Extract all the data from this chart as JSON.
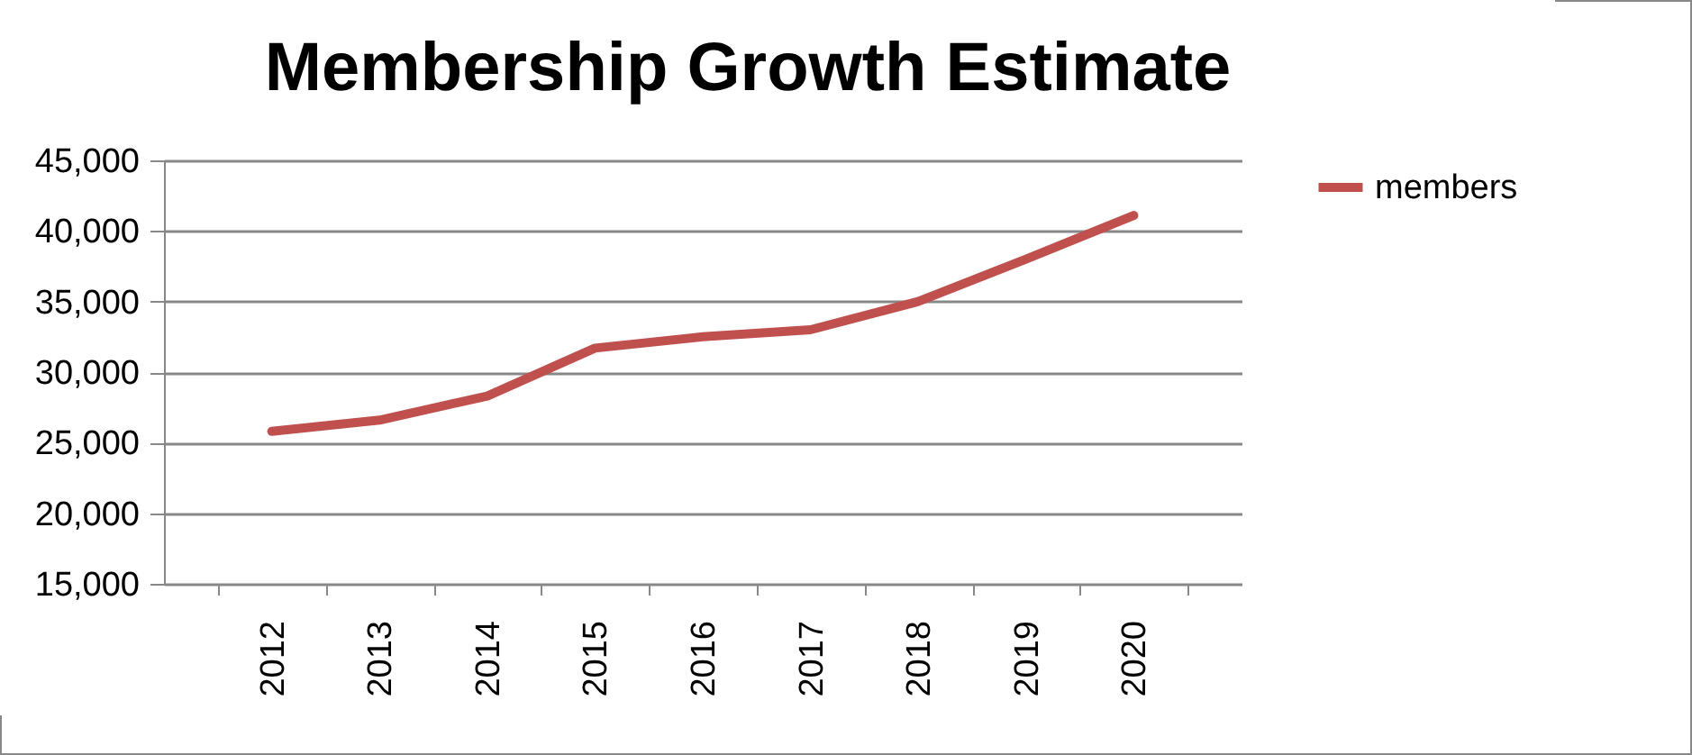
{
  "chart_data": {
    "type": "line",
    "title": "Membership Growth Estimate",
    "categories": [
      "2012",
      "2013",
      "2014",
      "2015",
      "2016",
      "2017",
      "2018",
      "2019",
      "2020"
    ],
    "series": [
      {
        "name": "members",
        "color": "#c0504d",
        "values": [
          25800,
          26600,
          28300,
          31700,
          32500,
          33000,
          35000,
          38000,
          41100
        ]
      }
    ],
    "ylim": [
      15000,
      45000
    ],
    "yticks": [
      {
        "value": 15000,
        "label": "15,000"
      },
      {
        "value": 20000,
        "label": "20,000"
      },
      {
        "value": 25000,
        "label": "25,000"
      },
      {
        "value": 30000,
        "label": "30,000"
      },
      {
        "value": 35000,
        "label": "35,000"
      },
      {
        "value": 40000,
        "label": "40,000"
      },
      {
        "value": 45000,
        "label": "45,000"
      }
    ],
    "grid": "y",
    "legend": "right",
    "marker": "none",
    "line_style": "solid"
  }
}
